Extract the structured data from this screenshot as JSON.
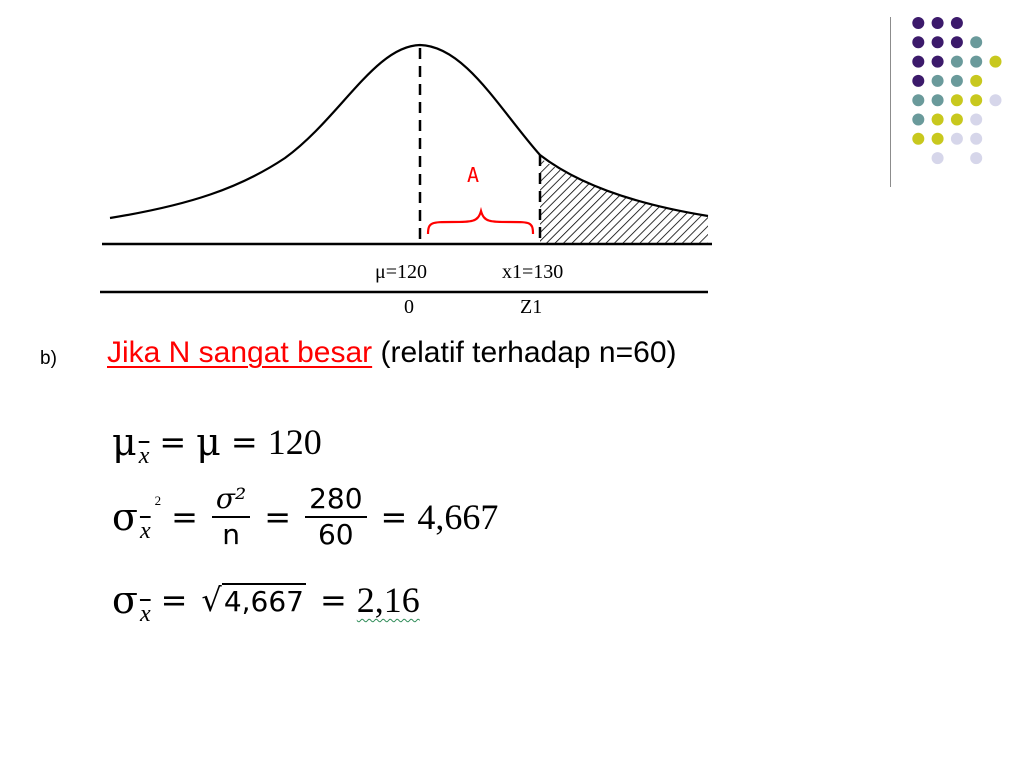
{
  "diagram": {
    "region_label": "A",
    "mean_label": "μ=120",
    "x1_label": "x1=130",
    "z0_label": "0",
    "z1_label": "Z1"
  },
  "bullet": {
    "marker": "b)",
    "link_text": "Jika N sangat besar",
    "rest_text": " (relatif terhadap n=60)"
  },
  "formulas": {
    "f1": {
      "sym_mu": "μ",
      "sub": "x",
      "eq1": "=",
      "mu": "μ",
      "eq2": "=",
      "value": "120"
    },
    "f2": {
      "sym_sigma": "σ",
      "sub": "x",
      "sup": "2",
      "eq1": "=",
      "num1": "σ²",
      "den1": "n",
      "eq2": "=",
      "num2": "280",
      "den2": "60",
      "eq3": "=",
      "result": "4,667"
    },
    "f3": {
      "sym_sigma": "σ",
      "sub": "x",
      "eq1": "=",
      "sqrt_sign": "√",
      "radicand": "4,667",
      "eq2": "=",
      "result": "2,16"
    }
  },
  "colors": {
    "link_red": "#ff0000",
    "dot_dark_purple": "#3c1a6b",
    "dot_teal": "#6a9a9b",
    "dot_yellow": "#c8c81e",
    "dot_light_lavender": "#d6d6ea"
  }
}
